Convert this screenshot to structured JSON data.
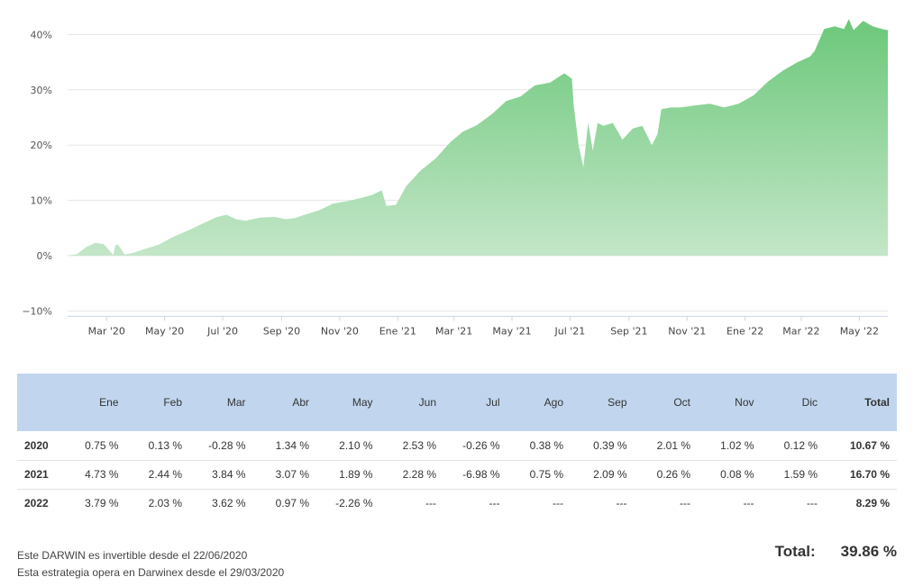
{
  "chart_data": {
    "type": "area",
    "title": "",
    "xlabel": "",
    "ylabel": "",
    "ylim": [
      -10,
      45
    ],
    "yticks": [
      -10,
      0,
      10,
      20,
      30,
      40
    ],
    "ytick_labels": [
      "−10%",
      "0%",
      "10%",
      "20%",
      "30%",
      "40%"
    ],
    "xlim": [
      "2020-01-20",
      "2022-05-31"
    ],
    "xticks": [
      "2020-03-01",
      "2020-05-01",
      "2020-07-01",
      "2020-09-01",
      "2020-11-01",
      "2021-01-01",
      "2021-03-01",
      "2021-05-01",
      "2021-07-01",
      "2021-09-01",
      "2021-11-01",
      "2022-01-01",
      "2022-03-01",
      "2022-05-01"
    ],
    "xtick_labels": [
      "Mar '20",
      "May '20",
      "Jul '20",
      "Sep '20",
      "Nov '20",
      "Ene '21",
      "Mar '21",
      "May '21",
      "Jul '21",
      "Sep '21",
      "Nov '21",
      "Ene '22",
      "Mar '22",
      "May '22"
    ],
    "grid": true,
    "color": "#6cc87a",
    "series": [
      {
        "x": [
          "2020-01-20",
          "2020-01-30",
          "2020-02-08",
          "2020-02-18",
          "2020-02-27",
          "2020-03-08",
          "2020-03-10",
          "2020-03-13",
          "2020-03-20",
          "2020-03-29",
          "2020-04-10",
          "2020-04-25",
          "2020-05-10",
          "2020-05-25",
          "2020-06-10",
          "2020-06-25",
          "2020-07-05",
          "2020-07-15",
          "2020-07-25",
          "2020-08-10",
          "2020-08-25",
          "2020-09-05",
          "2020-09-15",
          "2020-09-25",
          "2020-10-10",
          "2020-10-25",
          "2020-11-10",
          "2020-11-25",
          "2020-12-05",
          "2020-12-15",
          "2020-12-20",
          "2020-12-30",
          "2021-01-10",
          "2021-01-25",
          "2021-02-10",
          "2021-02-25",
          "2021-03-10",
          "2021-03-25",
          "2021-04-10",
          "2021-04-25",
          "2021-05-10",
          "2021-05-25",
          "2021-06-10",
          "2021-06-25",
          "2021-07-03",
          "2021-07-05",
          "2021-07-10",
          "2021-07-15",
          "2021-07-20",
          "2021-07-25",
          "2021-07-30",
          "2021-08-05",
          "2021-08-15",
          "2021-08-25",
          "2021-09-05",
          "2021-09-15",
          "2021-09-25",
          "2021-10-01",
          "2021-10-05",
          "2021-10-15",
          "2021-10-25",
          "2021-11-10",
          "2021-11-25",
          "2021-12-10",
          "2021-12-25",
          "2022-01-10",
          "2022-01-25",
          "2022-02-10",
          "2022-02-25",
          "2022-03-10",
          "2022-03-15",
          "2022-03-25",
          "2022-04-05",
          "2022-04-15",
          "2022-04-20",
          "2022-04-25",
          "2022-05-05",
          "2022-05-15",
          "2022-05-25",
          "2022-05-31"
        ],
        "y": [
          0,
          0.3,
          1.5,
          2.3,
          2.1,
          0.1,
          1.8,
          2.0,
          0.2,
          0.5,
          1.2,
          2.0,
          3.4,
          4.5,
          5.8,
          7.0,
          7.4,
          6.6,
          6.3,
          6.9,
          7.0,
          6.6,
          6.8,
          7.4,
          8.2,
          9.4,
          9.9,
          10.5,
          11.0,
          11.8,
          9.0,
          9.2,
          12.6,
          15.4,
          17.6,
          20.5,
          22.4,
          23.6,
          25.6,
          28.0,
          28.8,
          30.8,
          31.3,
          33.0,
          32.0,
          27.0,
          20.0,
          16.0,
          24.0,
          19.0,
          24.0,
          23.5,
          24.0,
          21.0,
          23.0,
          23.5,
          20.0,
          22.0,
          26.5,
          26.8,
          26.8,
          27.2,
          27.5,
          26.8,
          27.5,
          29.0,
          31.5,
          33.5,
          35.0,
          36.0,
          37.0,
          41.0,
          41.5,
          41.0,
          42.8,
          40.8,
          42.5,
          41.5,
          41.0,
          40.8
        ]
      }
    ]
  },
  "table": {
    "headers": [
      "",
      "Ene",
      "Feb",
      "Mar",
      "Abr",
      "May",
      "Jun",
      "Jul",
      "Ago",
      "Sep",
      "Oct",
      "Nov",
      "Dic",
      "Total"
    ],
    "rows": [
      {
        "year": "2020",
        "cells": [
          "0.75 %",
          "0.13 %",
          "-0.28 %",
          "1.34 %",
          "2.10 %",
          "2.53 %",
          "-0.26 %",
          "0.38 %",
          "0.39 %",
          "2.01 %",
          "1.02 %",
          "0.12 %"
        ],
        "total": "10.67 %"
      },
      {
        "year": "2021",
        "cells": [
          "4.73 %",
          "2.44 %",
          "3.84 %",
          "3.07 %",
          "1.89 %",
          "2.28 %",
          "-6.98 %",
          "0.75 %",
          "2.09 %",
          "0.26 %",
          "0.08 %",
          "1.59 %"
        ],
        "total": "16.70 %"
      },
      {
        "year": "2022",
        "cells": [
          "3.79 %",
          "2.03 %",
          "3.62 %",
          "0.97 %",
          "-2.26 %",
          "---",
          "---",
          "---",
          "---",
          "---",
          "---",
          "---"
        ],
        "total": "8.29 %"
      }
    ]
  },
  "footer": {
    "note_investable": "Este DARWIN es invertible desde el 22/06/2020",
    "note_since": "Esta estrategia opera en Darwinex desde el 29/03/2020",
    "total_label": "Total:",
    "total_value": "39.86 %"
  }
}
